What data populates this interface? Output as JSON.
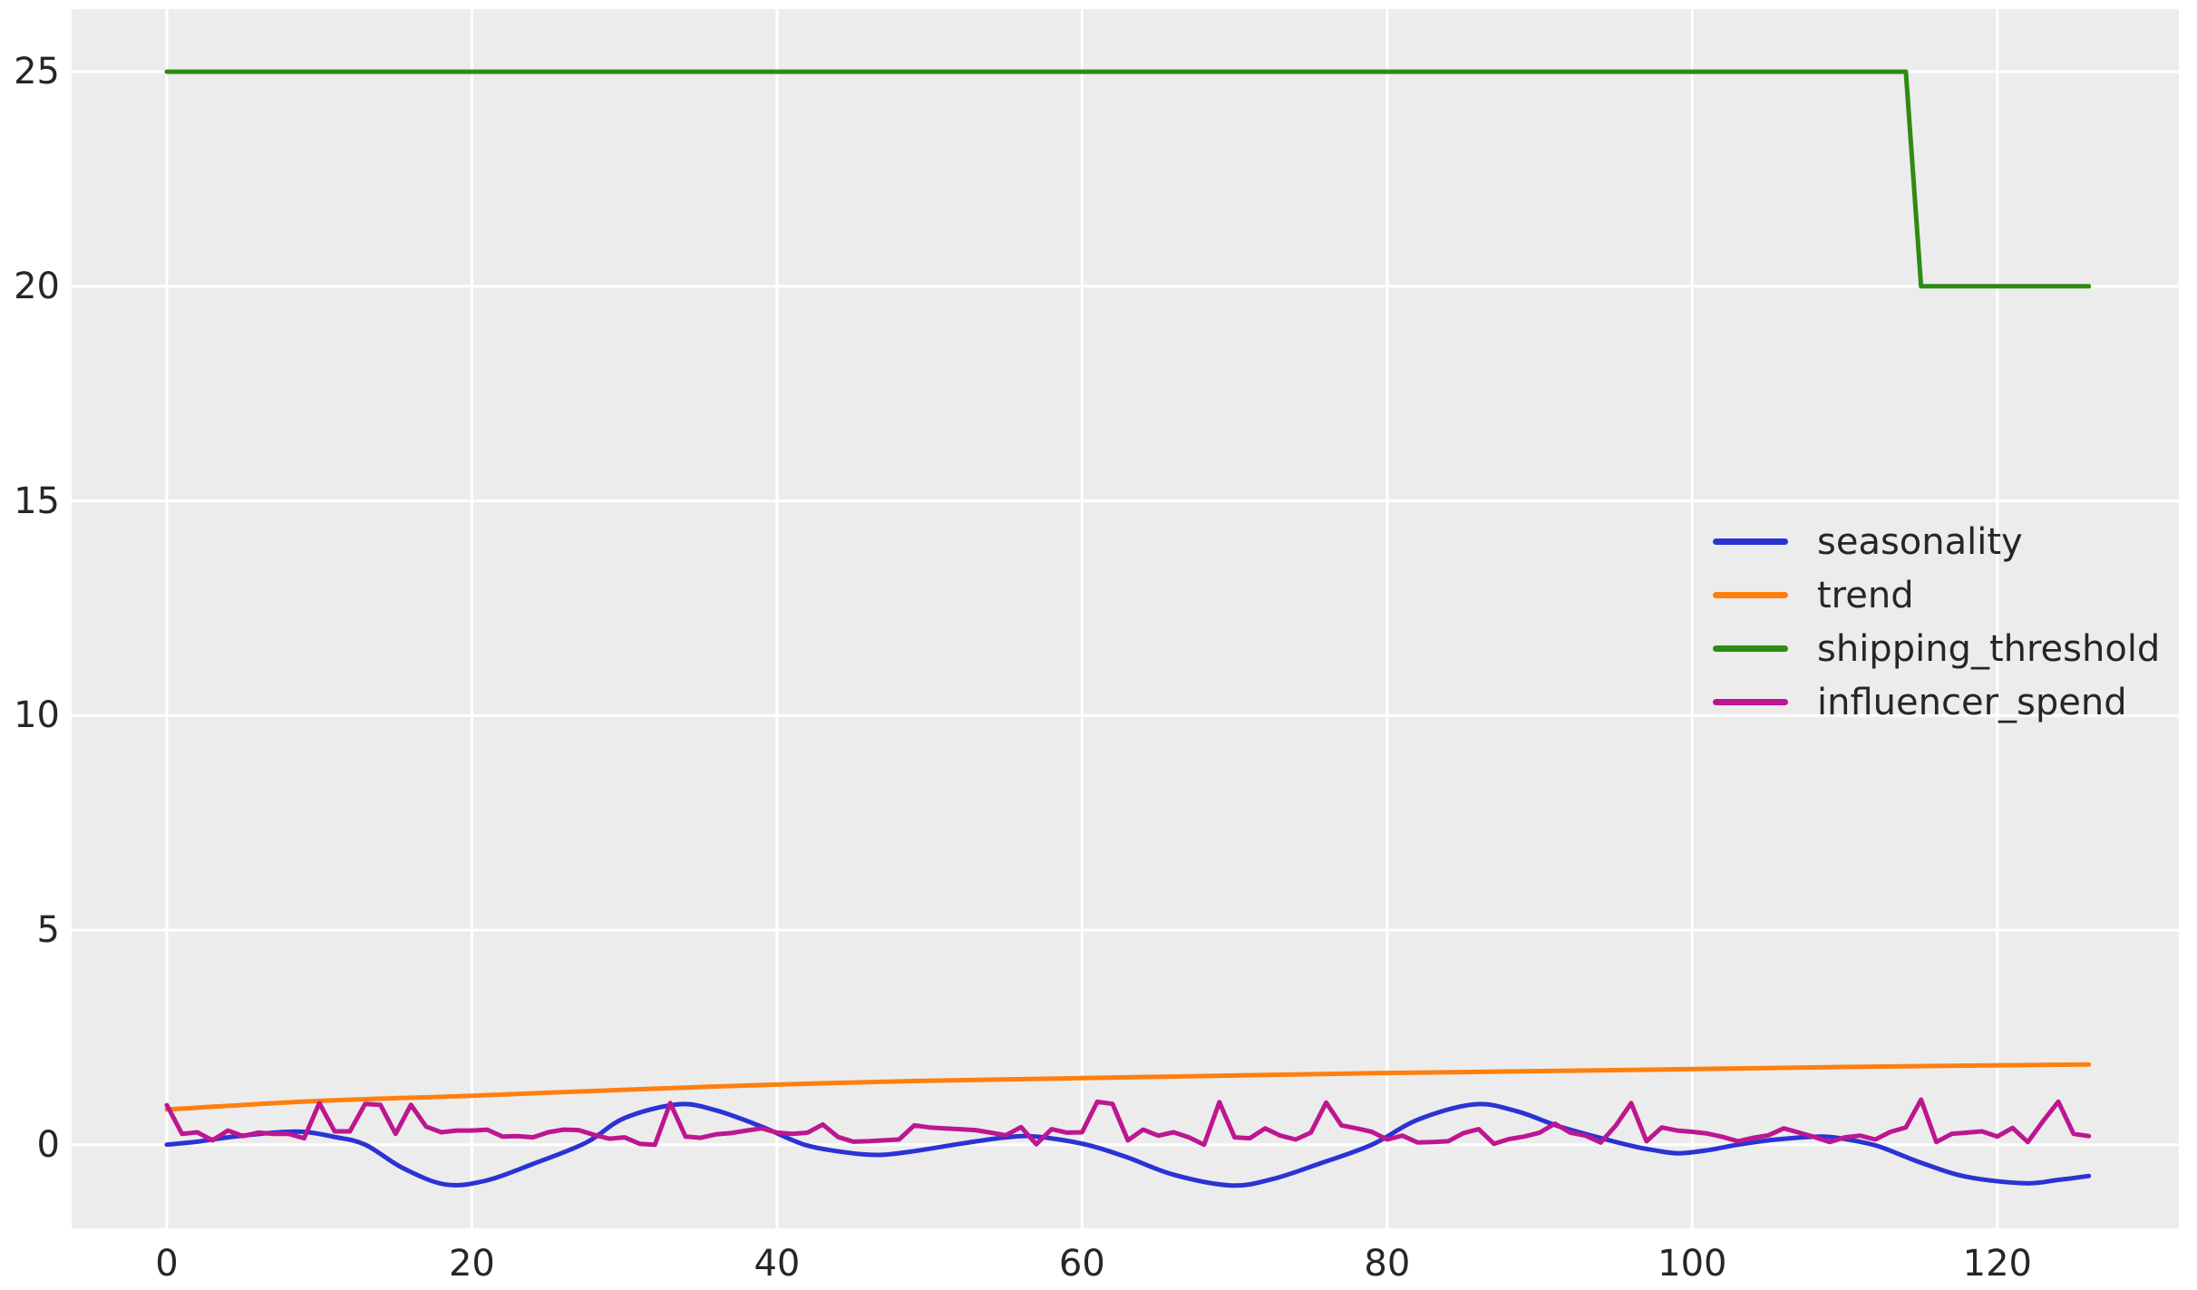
{
  "chart_data": {
    "type": "line",
    "title": "",
    "xlabel": "",
    "ylabel": "",
    "grid": true,
    "background": {
      "figure": "#ffffff",
      "axes": "#ececec",
      "gridline": "#ffffff",
      "tick_label_color": "#262626"
    },
    "x_ticks": [
      "0",
      "20",
      "40",
      "60",
      "80",
      "100",
      "120"
    ],
    "x_tick_values": [
      0,
      20,
      40,
      60,
      80,
      100,
      120
    ],
    "y_ticks": [
      "0",
      "5",
      "10",
      "15",
      "20",
      "25"
    ],
    "y_tick_values": [
      0,
      5,
      10,
      15,
      20,
      25
    ],
    "xlim": [
      -6.24,
      131.9
    ],
    "ylim": [
      -1.95,
      26.46
    ],
    "legend": {
      "position": "center-right",
      "frame": false
    },
    "series": [
      {
        "name": "seasonality",
        "color": "#2b33d5",
        "line_width": 5,
        "smooth": true,
        "x": [
          0,
          2,
          4,
          7,
          9,
          11,
          13,
          15.5,
          18.3,
          21,
          24,
          27.5,
          30,
          33.5,
          36,
          39,
          41.8,
          44.5,
          46.7,
          49,
          52,
          54.5,
          56.5,
          58.5,
          60.5,
          63,
          66,
          69.8,
          72.5,
          75.5,
          79,
          82,
          85.7,
          88.5,
          91.5,
          95.7,
          97.5,
          99.1,
          101,
          103,
          105.5,
          108.5,
          110.5,
          112.3,
          115,
          118,
          121.8,
          124,
          126
        ],
        "y": [
          0,
          0.07,
          0.17,
          0.28,
          0.3,
          0.18,
          0,
          -0.55,
          -0.93,
          -0.83,
          -0.45,
          0.05,
          0.62,
          0.94,
          0.8,
          0.42,
          0,
          -0.18,
          -0.24,
          -0.15,
          0.02,
          0.15,
          0.2,
          0.12,
          -0.02,
          -0.3,
          -0.7,
          -0.95,
          -0.8,
          -0.45,
          0,
          0.58,
          0.94,
          0.78,
          0.4,
          0,
          -0.13,
          -0.2,
          -0.13,
          0,
          0.12,
          0.19,
          0.1,
          -0.05,
          -0.42,
          -0.75,
          -0.9,
          -0.82,
          -0.73
        ]
      },
      {
        "name": "trend",
        "color": "#ff7f0e",
        "line_width": 5,
        "smooth": true,
        "x": [
          0,
          10,
          20,
          30,
          40,
          50,
          63,
          80,
          96,
          110,
          126
        ],
        "y": [
          0.82,
          1.02,
          1.14,
          1.28,
          1.4,
          1.49,
          1.57,
          1.67,
          1.74,
          1.81,
          1.87
        ]
      },
      {
        "name": "shipping_threshold",
        "color": "#2e8b14",
        "line_width": 5,
        "smooth": false,
        "x": [
          0,
          114,
          115,
          126
        ],
        "y": [
          25,
          25,
          20,
          20
        ]
      },
      {
        "name": "influencer_spend",
        "color": "#bd1690",
        "line_width": 5,
        "smooth": false,
        "x_start": 0,
        "x_step": 1,
        "y": [
          0.92,
          0.25,
          0.29,
          0.1,
          0.33,
          0.2,
          0.28,
          0.25,
          0.25,
          0.15,
          0.97,
          0.31,
          0.31,
          0.95,
          0.93,
          0.25,
          0.93,
          0.42,
          0.29,
          0.33,
          0.33,
          0.35,
          0.19,
          0.2,
          0.17,
          0.29,
          0.35,
          0.34,
          0.23,
          0.14,
          0.17,
          0.02,
          0.0,
          0.97,
          0.19,
          0.16,
          0.24,
          0.27,
          0.33,
          0.38,
          0.28,
          0.25,
          0.28,
          0.47,
          0.18,
          0.07,
          0.08,
          0.1,
          0.12,
          0.45,
          0.4,
          0.38,
          0.36,
          0.34,
          0.28,
          0.22,
          0.41,
          0.01,
          0.36,
          0.28,
          0.29,
          1.0,
          0.95,
          0.1,
          0.35,
          0.21,
          0.29,
          0.17,
          0.0,
          0.99,
          0.17,
          0.15,
          0.38,
          0.21,
          0.12,
          0.28,
          0.98,
          0.45,
          0.38,
          0.3,
          0.12,
          0.21,
          0.05,
          0.06,
          0.08,
          0.27,
          0.36,
          0.02,
          0.13,
          0.19,
          0.28,
          0.49,
          0.28,
          0.21,
          0.05,
          0.45,
          0.97,
          0.08,
          0.4,
          0.33,
          0.3,
          0.26,
          0.18,
          0.08,
          0.16,
          0.22,
          0.38,
          0.28,
          0.18,
          0.06,
          0.17,
          0.21,
          0.12,
          0.3,
          0.4,
          1.05,
          0.06,
          0.25,
          0.28,
          0.31,
          0.19,
          0.39,
          0.06,
          0.55,
          1.0,
          0.25,
          0.2
        ]
      }
    ]
  }
}
